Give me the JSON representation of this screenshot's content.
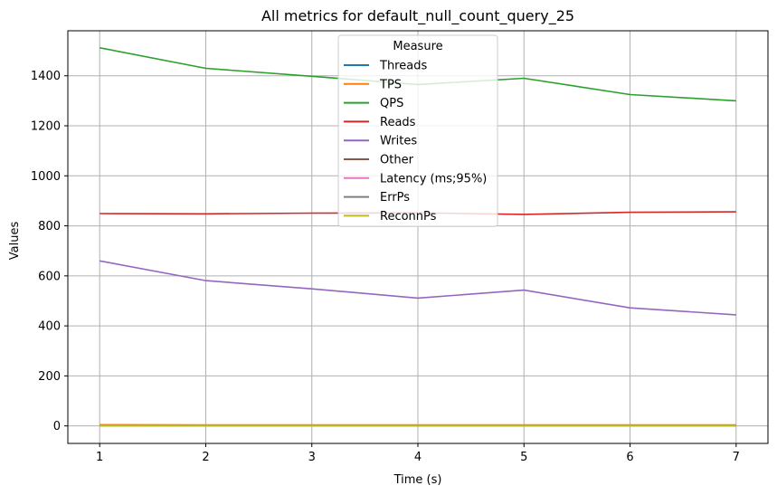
{
  "chart_data": {
    "type": "line",
    "title": "All metrics for default_null_count_query_25",
    "xlabel": "Time (s)",
    "ylabel": "Values",
    "x": [
      1,
      2,
      3,
      4,
      5,
      6,
      7
    ],
    "xlim": [
      0.7,
      7.3
    ],
    "ylim": [
      -70,
      1580
    ],
    "xticks": [
      1,
      2,
      3,
      4,
      5,
      6,
      7
    ],
    "yticks": [
      0,
      200,
      400,
      600,
      800,
      1000,
      1200,
      1400
    ],
    "grid": true,
    "legend": {
      "title": "Measure",
      "placement": "top-center"
    },
    "series": [
      {
        "name": "Threads",
        "color": "#1f77b4",
        "values": [
          1,
          1,
          1,
          1,
          1,
          1,
          1
        ]
      },
      {
        "name": "TPS",
        "color": "#ff7f0e",
        "values": [
          5,
          4,
          4,
          4,
          4,
          4,
          4
        ]
      },
      {
        "name": "QPS",
        "color": "#2ca02c",
        "values": [
          1512,
          1430,
          1398,
          1365,
          1390,
          1325,
          1300
        ]
      },
      {
        "name": "Reads",
        "color": "#d62728",
        "values": [
          849,
          848,
          851,
          852,
          846,
          854,
          856
        ]
      },
      {
        "name": "Writes",
        "color": "#9467bd",
        "values": [
          660,
          581,
          548,
          511,
          543,
          472,
          444
        ]
      },
      {
        "name": "Other",
        "color": "#8c564b",
        "values": [
          0,
          0,
          0,
          0,
          0,
          0,
          0
        ]
      },
      {
        "name": "Latency (ms;95%)",
        "color": "#e377c2",
        "values": [
          2,
          2,
          2,
          2,
          2,
          2,
          2
        ]
      },
      {
        "name": "ErrPs",
        "color": "#7f7f7f",
        "values": [
          0,
          0,
          0,
          0,
          0,
          0,
          0
        ]
      },
      {
        "name": "ReconnPs",
        "color": "#bcbd22",
        "values": [
          0,
          0,
          0,
          0,
          0,
          0,
          0
        ]
      }
    ]
  }
}
